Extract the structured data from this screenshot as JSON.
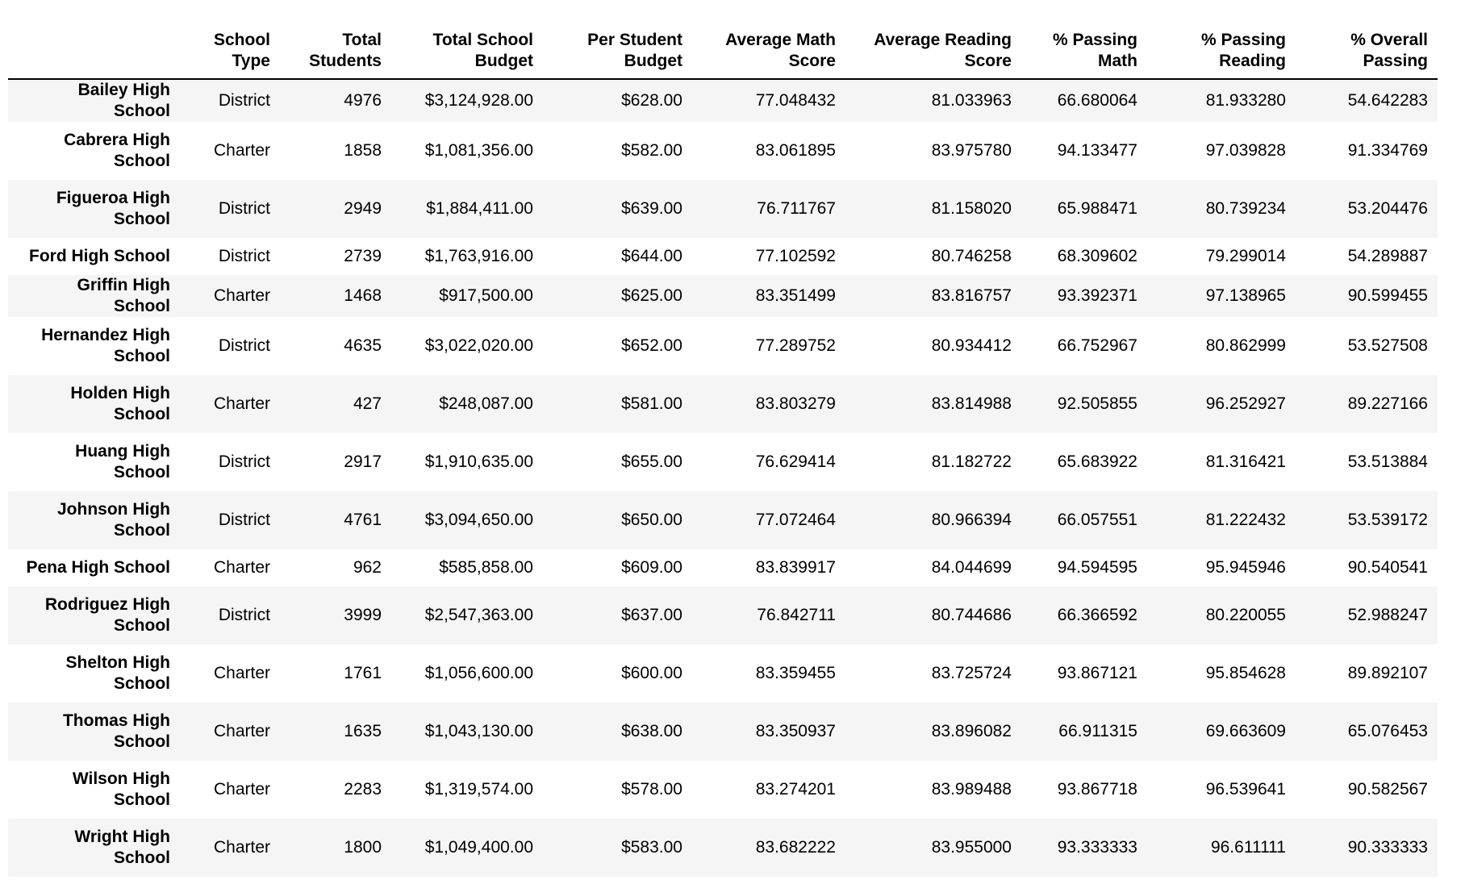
{
  "table": {
    "columns": [
      "School Type",
      "Total Students",
      "Total School Budget",
      "Per Student Budget",
      "Average Math Score",
      "Average Reading Score",
      "% Passing Math",
      "% Passing Reading",
      "% Overall Passing"
    ],
    "rows": [
      {
        "name": "Bailey High School",
        "cells": [
          "District",
          "4976",
          "$3,124,928.00",
          "$628.00",
          "77.048432",
          "81.033963",
          "66.680064",
          "81.933280",
          "54.642283"
        ]
      },
      {
        "name": "Cabrera High School",
        "cells": [
          "Charter",
          "1858",
          "$1,081,356.00",
          "$582.00",
          "83.061895",
          "83.975780",
          "94.133477",
          "97.039828",
          "91.334769"
        ]
      },
      {
        "name": "Figueroa High School",
        "cells": [
          "District",
          "2949",
          "$1,884,411.00",
          "$639.00",
          "76.711767",
          "81.158020",
          "65.988471",
          "80.739234",
          "53.204476"
        ]
      },
      {
        "name": "Ford High School",
        "cells": [
          "District",
          "2739",
          "$1,763,916.00",
          "$644.00",
          "77.102592",
          "80.746258",
          "68.309602",
          "79.299014",
          "54.289887"
        ]
      },
      {
        "name": "Griffin High School",
        "cells": [
          "Charter",
          "1468",
          "$917,500.00",
          "$625.00",
          "83.351499",
          "83.816757",
          "93.392371",
          "97.138965",
          "90.599455"
        ]
      },
      {
        "name": "Hernandez High School",
        "cells": [
          "District",
          "4635",
          "$3,022,020.00",
          "$652.00",
          "77.289752",
          "80.934412",
          "66.752967",
          "80.862999",
          "53.527508"
        ]
      },
      {
        "name": "Holden High School",
        "cells": [
          "Charter",
          "427",
          "$248,087.00",
          "$581.00",
          "83.803279",
          "83.814988",
          "92.505855",
          "96.252927",
          "89.227166"
        ]
      },
      {
        "name": "Huang High School",
        "cells": [
          "District",
          "2917",
          "$1,910,635.00",
          "$655.00",
          "76.629414",
          "81.182722",
          "65.683922",
          "81.316421",
          "53.513884"
        ]
      },
      {
        "name": "Johnson High School",
        "cells": [
          "District",
          "4761",
          "$3,094,650.00",
          "$650.00",
          "77.072464",
          "80.966394",
          "66.057551",
          "81.222432",
          "53.539172"
        ]
      },
      {
        "name": "Pena High School",
        "cells": [
          "Charter",
          "962",
          "$585,858.00",
          "$609.00",
          "83.839917",
          "84.044699",
          "94.594595",
          "95.945946",
          "90.540541"
        ]
      },
      {
        "name": "Rodriguez High School",
        "cells": [
          "District",
          "3999",
          "$2,547,363.00",
          "$637.00",
          "76.842711",
          "80.744686",
          "66.366592",
          "80.220055",
          "52.988247"
        ]
      },
      {
        "name": "Shelton High School",
        "cells": [
          "Charter",
          "1761",
          "$1,056,600.00",
          "$600.00",
          "83.359455",
          "83.725724",
          "93.867121",
          "95.854628",
          "89.892107"
        ]
      },
      {
        "name": "Thomas High School",
        "cells": [
          "Charter",
          "1635",
          "$1,043,130.00",
          "$638.00",
          "83.350937",
          "83.896082",
          "66.911315",
          "69.663609",
          "65.076453"
        ]
      },
      {
        "name": "Wilson High School",
        "cells": [
          "Charter",
          "2283",
          "$1,319,574.00",
          "$578.00",
          "83.274201",
          "83.989488",
          "93.867718",
          "96.539641",
          "90.582567"
        ]
      },
      {
        "name": "Wright High School",
        "cells": [
          "Charter",
          "1800",
          "$1,049,400.00",
          "$583.00",
          "83.682222",
          "83.955000",
          "93.333333",
          "96.611111",
          "90.333333"
        ]
      }
    ]
  }
}
